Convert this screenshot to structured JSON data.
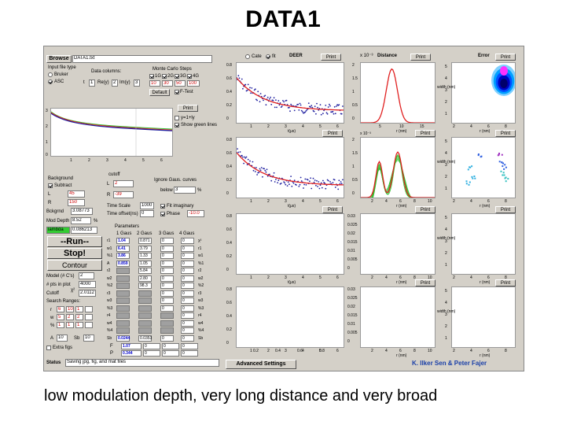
{
  "slide": {
    "title": "DATA1",
    "caption": "low modulation depth,  very long distance and very broad"
  },
  "app": {
    "browse_button": "Browse",
    "file_name": "DATA1.txt",
    "input_file_type_label": "Input file type",
    "input_opts": [
      "Bruker",
      "ASC"
    ],
    "data_columns_label": "Data columns:",
    "t_label": "t",
    "t_value": "1",
    "re_label": "Re(y)",
    "re_value": "2",
    "im_label": "Im(y)",
    "im_value": "3",
    "monte_carlo_label": "Monte Carlo Steps",
    "mc_checks": [
      "1G",
      "2G",
      "3G",
      "4G"
    ],
    "mc_values": [
      "10",
      "30",
      "50",
      "100"
    ],
    "default_button": "Default",
    "ftest_label": "F-Test",
    "print_label": "Print",
    "yaxis_label": "y=1+ly",
    "show_green_lines": "Show green lines",
    "background_label": "Background",
    "subtract_label": "Subtract",
    "l_label": "L",
    "l_value": "45",
    "r_label": "R",
    "r_value": "150",
    "bckgrnd_label": "Bckgrnd",
    "bckgrnd_value": "3.08773",
    "mod_depth_label": "Mod Depth",
    "mod_depth_value": "8.52",
    "mod_depth_unit": "%",
    "lambda_label": "lambda",
    "lambda_value": "0.086213",
    "run_button": "--Run--",
    "stop_button": "Stop!",
    "contour_button": "Contour",
    "cutoff_label": "cutoff",
    "lcutoff_value": "2",
    "rcutoff_value": "-39",
    "ignore_gauss_label": "Ignore Gaus. curves",
    "below_label": "below",
    "below_value": "3",
    "time_scale_label": "Time Scale",
    "time_scale_value": "1000",
    "time_offset_label": "Time offset(ns)",
    "time_offset_value": "0",
    "fit_imaginary_label": "Fit imaginary",
    "phase_label": "Phase",
    "phase_value": "-10.0",
    "model_label": "Model (# C's)",
    "model_value": "2",
    "pts_plot_label": "# pts in plot",
    "pts_plot_value": "4000",
    "cutoff2_label": "Cutoff",
    "chi_label": "χ²",
    "chi_value": "2.0112",
    "search_ranges_label": "Search Ranges:",
    "r_row_label": "r",
    "w_row_label": "w",
    "pct_row_label": "%",
    "r_row": [
      "6",
      "10",
      "1"
    ],
    "w_row": [
      "5",
      "2",
      "2"
    ],
    "pct_row": [
      "1",
      "1",
      "1"
    ],
    "a_label": "A",
    "a_value": "10",
    "sb_label": "Sb",
    "sb_value": "10",
    "extra_figs_label": "Extra figs",
    "parameters_label": "Parameters",
    "param_headers": [
      "1 Gaus",
      "2 Gaus",
      "3 Gaus",
      "4 Gaus"
    ],
    "param_row_labels": [
      "r1",
      "w1",
      "%1",
      "A",
      "r2",
      "w2",
      "%2",
      "r3",
      "w3",
      "%3",
      "r4",
      "w4",
      "%4",
      "Sb"
    ],
    "param_col1": [
      "1.04",
      "6.41",
      "3.86",
      "0.859",
      "",
      "",
      "",
      "",
      "",
      "",
      "",
      "",
      "",
      "0.0244"
    ],
    "param_col2": [
      "0.871",
      "3.79",
      "1.33",
      "1.05",
      "5.84",
      "2.80",
      "98.3",
      "",
      "",
      "",
      "",
      "",
      "",
      "0.0353"
    ],
    "param_col3": [
      "0",
      "0",
      "0",
      "0",
      "0",
      "0",
      "0",
      "0",
      "0",
      "0",
      "",
      "",
      "",
      "0"
    ],
    "param_col4": [
      "0",
      "0",
      "0",
      "0",
      "0",
      "0",
      "0",
      "0",
      "0",
      "0",
      "0",
      "0",
      "0",
      "0"
    ],
    "param_unit_labels": [
      "χ²",
      "r1",
      "w1",
      "%1",
      "r2",
      "w2",
      "%2",
      "r3",
      "w3",
      "%3",
      "r4",
      "w4",
      "%4",
      "Sb"
    ],
    "bottom_f_label": "F",
    "bottom_p_label": "P",
    "f_values": [
      "1.07",
      "0",
      "0",
      "0"
    ],
    "p_values": [
      "0.344",
      "0",
      "0",
      "0"
    ],
    "status_label": "Status",
    "status_value": "Saving jpg, fig, and mat files",
    "advanced_settings_button": "Advanced Settings",
    "authors": "K. Ilker Sen & Peter Fajer",
    "cate_label": "Cate",
    "fit_label": "fit",
    "deer_label": "DEER",
    "distance_label": "Distance",
    "error_label": "Error",
    "x_label_time": "t(μs)",
    "x_label_dist": "r (nm)",
    "y_label_width": "width (nm)",
    "scale_label": "x 10⁻³",
    "top_xaxis": [
      "1",
      "2",
      "3",
      "4",
      "5",
      "6"
    ],
    "deer_yticks": [
      "0.8",
      "0.6",
      "0.4",
      "0.2",
      "0"
    ],
    "deer_xticks": [
      "1",
      "2",
      "3",
      "4",
      "5",
      "6"
    ],
    "dist_xticks": [
      "5",
      "10",
      "15"
    ],
    "dist_yticks": [
      "2",
      "1.5",
      "1",
      "0.5",
      "0"
    ],
    "err_xticks": [
      "2",
      "4",
      "6",
      "8"
    ],
    "err_yticks": [
      "5",
      "4",
      "3",
      "2",
      "1"
    ],
    "empty_dist_yticks": [
      "0.03",
      "0.025",
      "0.02",
      "0.015",
      "0.01",
      "0.005",
      "0"
    ],
    "empty_deer_xticks": [
      "0.2",
      "0.4",
      "0.6",
      "0.8"
    ],
    "empty_dist_xticks": [
      "2",
      "4",
      "6",
      "8",
      "10"
    ]
  },
  "colors": {
    "window_bg": "#d4d0c8",
    "data_points": "#2020a0",
    "fit_line": "#e02020",
    "green_lines": "#30c030",
    "heatmap_hot": "#ff00ff",
    "heatmap_cold": "#0000ff"
  }
}
